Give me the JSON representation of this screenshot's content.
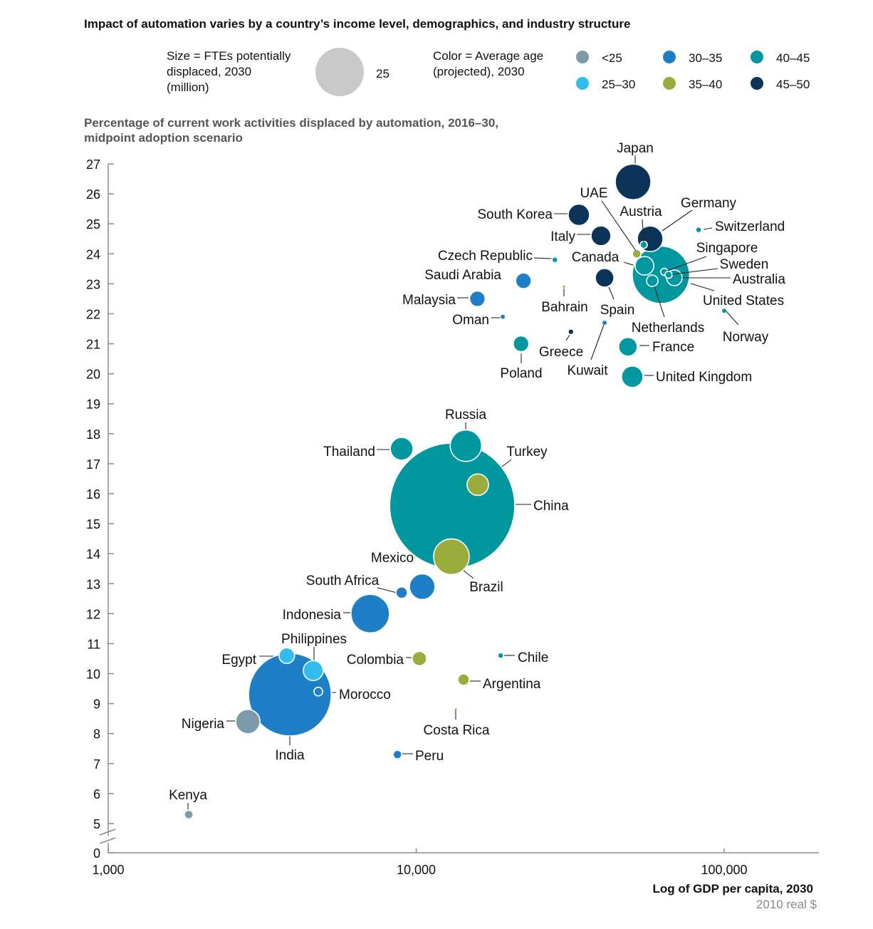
{
  "chart_data": {
    "type": "scatter",
    "subtype": "bubble",
    "title": "Impact of automation varies by a country’s income level, demographics, and industry structure",
    "size_legend": {
      "label_lines": [
        "Size = FTEs potentially",
        "displaced, 2030",
        "(million)"
      ],
      "reference_value": 25,
      "reference_label": "25"
    },
    "color_legend": {
      "label_lines": [
        "Color = Average age",
        "(projected), 2030"
      ],
      "groups": [
        {
          "key": "lt25",
          "label": "<25",
          "color": "#7d9aab"
        },
        {
          "key": "25-30",
          "label": "25–30",
          "color": "#33bdef"
        },
        {
          "key": "30-35",
          "label": "30–35",
          "color": "#1f7fc6"
        },
        {
          "key": "35-40",
          "label": "35–40",
          "color": "#9aad3c"
        },
        {
          "key": "40-45",
          "label": "40–45",
          "color": "#00979e"
        },
        {
          "key": "45-50",
          "label": "45–50",
          "color": "#0c3458"
        }
      ]
    },
    "ylabel_lines": [
      "Percentage of current work activities displaced by automation, 2016–30,",
      "midpoint adoption scenario"
    ],
    "xlabel": "Log of GDP per capita, 2030",
    "xlabel_sub": "2010 real $",
    "x_scale": "log",
    "xlim": [
      1000,
      200000
    ],
    "ylim": [
      5,
      27
    ],
    "y_break": true,
    "y_ticks": [
      "0",
      "5",
      "6",
      "7",
      "8",
      "9",
      "10",
      "11",
      "12",
      "13",
      "14",
      "15",
      "16",
      "17",
      "18",
      "19",
      "20",
      "21",
      "22",
      "23",
      "24",
      "25",
      "26",
      "27"
    ],
    "x_ticks": [
      {
        "value": 1000,
        "label": "1,000"
      },
      {
        "value": 10000,
        "label": "10,000"
      },
      {
        "value": 100000,
        "label": "100,000"
      }
    ],
    "grid": false,
    "points": [
      {
        "name": "China",
        "gdp": 13090,
        "pct": 15.6,
        "fte": 167,
        "age": "40-45"
      },
      {
        "name": "India",
        "gdp": 3890,
        "pct": 9.3,
        "fte": 73,
        "age": "30-35"
      },
      {
        "name": "United States",
        "gdp": 62300,
        "pct": 23.3,
        "fte": 35,
        "age": "40-45"
      },
      {
        "name": "Indonesia",
        "gdp": 7090,
        "pct": 12.0,
        "fte": 15.8,
        "age": "30-35"
      },
      {
        "name": "Japan",
        "gdp": 50600,
        "pct": 26.4,
        "fte": 13.5,
        "age": "45-50"
      },
      {
        "name": "Brazil",
        "gdp": 13010,
        "pct": 13.9,
        "fte": 13.5,
        "age": "35-40"
      },
      {
        "name": "Russia",
        "gdp": 14500,
        "pct": 17.6,
        "fte": 10.5,
        "age": "40-45"
      },
      {
        "name": "Germany",
        "gdp": 57500,
        "pct": 24.5,
        "fte": 7.0,
        "age": "45-50"
      },
      {
        "name": "Mexico",
        "gdp": 10460,
        "pct": 12.9,
        "fte": 7.0,
        "age": "30-35"
      },
      {
        "name": "Nigeria",
        "gdp": 2840,
        "pct": 8.4,
        "fte": 6.25,
        "age": "lt25"
      },
      {
        "name": "Thailand",
        "gdp": 8970,
        "pct": 17.5,
        "fte": 5.5,
        "age": "40-45"
      },
      {
        "name": "South Korea",
        "gdp": 33750,
        "pct": 25.3,
        "fte": 4.9,
        "age": "45-50"
      },
      {
        "name": "Turkey",
        "gdp": 15850,
        "pct": 16.3,
        "fte": 4.9,
        "age": "35-40"
      },
      {
        "name": "United Kingdom",
        "gdp": 50300,
        "pct": 19.9,
        "fte": 4.9,
        "age": "40-45"
      },
      {
        "name": "Italy",
        "gdp": 39800,
        "pct": 24.6,
        "fte": 4.2,
        "age": "45-50"
      },
      {
        "name": "Philippines",
        "gdp": 4630,
        "pct": 10.1,
        "fte": 4.2,
        "age": "25-30"
      },
      {
        "name": "Canada",
        "gdp": 55100,
        "pct": 23.6,
        "fte": 3.7,
        "age": "40-45"
      },
      {
        "name": "Spain",
        "gdp": 40900,
        "pct": 23.2,
        "fte": 3.7,
        "age": "45-50"
      },
      {
        "name": "France",
        "gdp": 48700,
        "pct": 20.9,
        "fte": 3.7,
        "age": "40-45"
      },
      {
        "name": "Saudi Arabia",
        "gdp": 22300,
        "pct": 23.1,
        "fte": 2.6,
        "age": "30-35"
      },
      {
        "name": "Malaysia",
        "gdp": 15800,
        "pct": 22.5,
        "fte": 2.6,
        "age": "30-35"
      },
      {
        "name": "Poland",
        "gdp": 21900,
        "pct": 21.0,
        "fte": 2.6,
        "age": "40-45"
      },
      {
        "name": "Egypt",
        "gdp": 3800,
        "pct": 10.6,
        "fte": 2.6,
        "age": "25-30"
      },
      {
        "name": "Australia",
        "gdp": 68900,
        "pct": 23.2,
        "fte": 2.6,
        "age": "40-45"
      },
      {
        "name": "Colombia",
        "gdp": 10240,
        "pct": 10.5,
        "fte": 2.2,
        "age": "35-40"
      },
      {
        "name": "Netherlands",
        "gdp": 58400,
        "pct": 23.1,
        "fte": 1.4,
        "age": "40-45"
      },
      {
        "name": "South Africa",
        "gdp": 8970,
        "pct": 12.7,
        "fte": 1.4,
        "age": "30-35"
      },
      {
        "name": "Argentina",
        "gdp": 14250,
        "pct": 9.8,
        "fte": 1.4,
        "age": "35-40"
      },
      {
        "name": "UAE",
        "gdp": 52000,
        "pct": 24.0,
        "fte": 0.8,
        "age": "35-40"
      },
      {
        "name": "Morocco",
        "gdp": 4810,
        "pct": 9.4,
        "fte": 0.8,
        "age": "30-35"
      },
      {
        "name": "Peru",
        "gdp": 8690,
        "pct": 7.3,
        "fte": 0.8,
        "age": "30-35"
      },
      {
        "name": "Kenya",
        "gdp": 1825,
        "pct": 5.3,
        "fte": 0.8,
        "age": "lt25"
      },
      {
        "name": "Austria",
        "gdp": 54800,
        "pct": 24.3,
        "fte": 0.54,
        "age": "40-45"
      },
      {
        "name": "Singapore",
        "gdp": 63900,
        "pct": 23.4,
        "fte": 0.54,
        "age": "40-45"
      },
      {
        "name": "Sweden",
        "gdp": 66000,
        "pct": 23.3,
        "fte": 0.54,
        "age": "40-45"
      },
      {
        "name": "Switzerland",
        "gdp": 82600,
        "pct": 24.8,
        "fte": 0.35,
        "age": "40-45"
      },
      {
        "name": "Czech Republic",
        "gdp": 28200,
        "pct": 23.8,
        "fte": 0.35,
        "age": "40-45"
      },
      {
        "name": "Greece",
        "gdp": 31800,
        "pct": 21.4,
        "fte": 0.35,
        "age": "45-50"
      },
      {
        "name": "Chile",
        "gdp": 18800,
        "pct": 10.6,
        "fte": 0.35,
        "age": "40-45"
      },
      {
        "name": "Kuwait",
        "gdp": 40900,
        "pct": 21.7,
        "fte": 0.19,
        "age": "30-35"
      },
      {
        "name": "Norway",
        "gdp": 100000,
        "pct": 22.1,
        "fte": 0.19,
        "age": "40-45"
      },
      {
        "name": "Oman",
        "gdp": 19100,
        "pct": 21.9,
        "fte": 0.19,
        "age": "30-35"
      },
      {
        "name": "Bahrain",
        "gdp": 30200,
        "pct": 22.9,
        "fte": 0.05,
        "age": "35-40"
      },
      {
        "name": "Costa Rica",
        "gdp": 13440,
        "pct": 8.8,
        "fte": 0.05,
        "age": "35-40"
      }
    ]
  }
}
